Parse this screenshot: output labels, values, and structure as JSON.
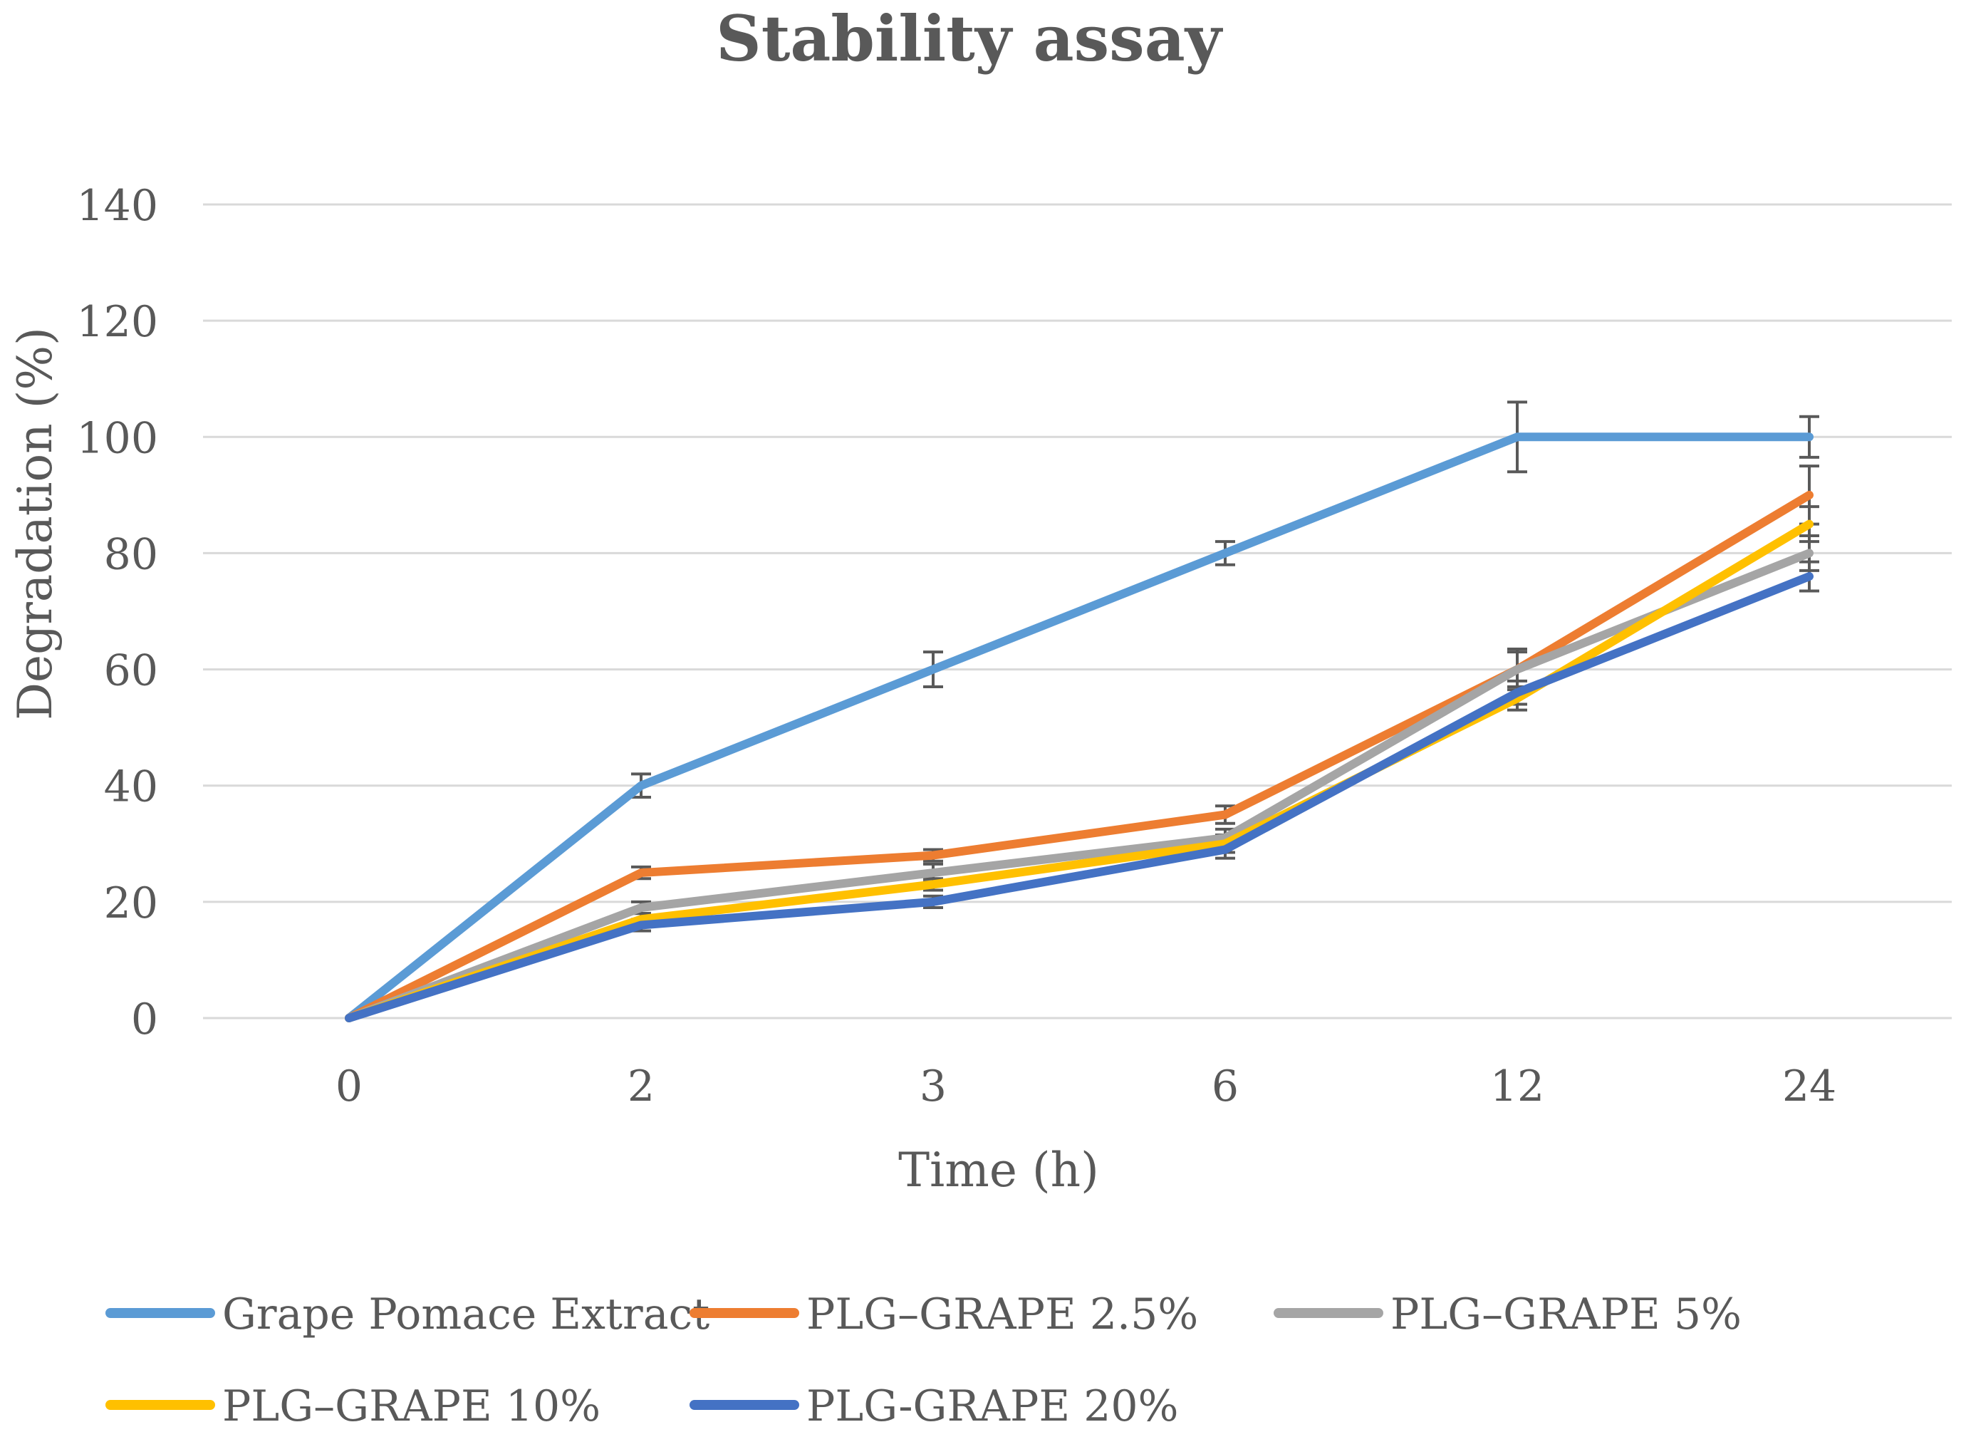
{
  "chart_data": {
    "type": "line",
    "title": "Stability assay",
    "xlabel": "Time (h)",
    "ylabel": "Degradation (%)",
    "categories": [
      "0",
      "2",
      "3",
      "6",
      "12",
      "24"
    ],
    "ylim": [
      0,
      140
    ],
    "yticks": [
      0,
      20,
      40,
      60,
      80,
      100,
      120,
      140
    ],
    "grid": true,
    "legend_position": "bottom",
    "series": [
      {
        "name": "Grape Pomace Extract",
        "color": "#5B9BD5",
        "values": [
          0,
          40,
          60,
          80,
          100,
          100
        ],
        "errors": [
          0,
          2,
          3,
          2,
          6,
          3.5
        ]
      },
      {
        "name": "PLG–GRAPE 2.5%",
        "color": "#ED7D31",
        "values": [
          0,
          25,
          28,
          35,
          60,
          90
        ],
        "errors": [
          0,
          1,
          1,
          1.5,
          3.5,
          5
        ]
      },
      {
        "name": "PLG–GRAPE 5%",
        "color": "#A5A5A5",
        "values": [
          0,
          19,
          25,
          31,
          60,
          80
        ],
        "errors": [
          0,
          1,
          1.5,
          1.5,
          3,
          3
        ]
      },
      {
        "name": "PLG–GRAPE 10%",
        "color": "#FFC000",
        "values": [
          0,
          17,
          23,
          30,
          55,
          85
        ],
        "errors": [
          0,
          1,
          1,
          1.5,
          2,
          3
        ]
      },
      {
        "name": "PLG-GRAPE 20%",
        "color": "#4472C4",
        "values": [
          0,
          16,
          20,
          29,
          56,
          76
        ],
        "errors": [
          0,
          1,
          1,
          1.5,
          2,
          2.5
        ]
      }
    ]
  }
}
